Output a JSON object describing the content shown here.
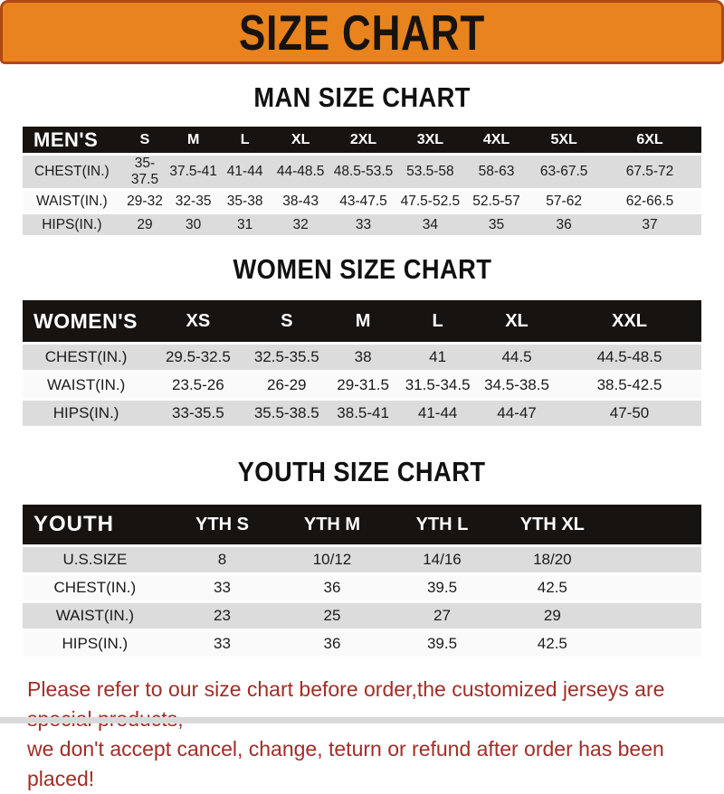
{
  "banner": {
    "title": "SIZE CHART",
    "bg_color": "#e8831e",
    "border_color": "#b04716",
    "text_color": "#171310"
  },
  "sections": [
    {
      "heading": "MAN SIZE CHART",
      "table": {
        "label": "MEN'S",
        "columns": [
          "S",
          "M",
          "L",
          "XL",
          "2XL",
          "3XL",
          "4XL",
          "5XL",
          "6XL"
        ],
        "rows": [
          {
            "label": "CHEST(IN.)",
            "values": [
              "35-37.5",
              "37.5-41",
              "41-44",
              "44-48.5",
              "48.5-53.5",
              "53.5-58",
              "58-63",
              "63-67.5",
              "67.5-72"
            ]
          },
          {
            "label": "WAIST(IN.)",
            "values": [
              "29-32",
              "32-35",
              "35-38",
              "38-43",
              "43-47.5",
              "47.5-52.5",
              "52.5-57",
              "57-62",
              "62-66.5"
            ]
          },
          {
            "label": "HIPS(IN.)",
            "values": [
              "29",
              "30",
              "31",
              "32",
              "33",
              "34",
              "35",
              "36",
              "37"
            ]
          }
        ]
      }
    },
    {
      "heading": "WOMEN SIZE CHART",
      "table": {
        "label": "WOMEN'S",
        "columns": [
          "XS",
          "S",
          "M",
          "L",
          "XL",
          "XXL"
        ],
        "rows": [
          {
            "label": "CHEST(IN.)",
            "values": [
              "29.5-32.5",
              "32.5-35.5",
              "38",
              "41",
              "44.5",
              "44.5-48.5"
            ]
          },
          {
            "label": "WAIST(IN.)",
            "values": [
              "23.5-26",
              "26-29",
              "29-31.5",
              "31.5-34.5",
              "34.5-38.5",
              "38.5-42.5"
            ]
          },
          {
            "label": "HIPS(IN.)",
            "values": [
              "33-35.5",
              "35.5-38.5",
              "38.5-41",
              "41-44",
              "44-47",
              "47-50"
            ]
          }
        ]
      }
    },
    {
      "heading": "YOUTH SIZE CHART",
      "table": {
        "label": "YOUTH",
        "columns": [
          "YTH S",
          "YTH M",
          "YTH L",
          "YTH XL"
        ],
        "rows": [
          {
            "label": "U.S.SIZE",
            "values": [
              "8",
              "10/12",
              "14/16",
              "18/20"
            ]
          },
          {
            "label": "CHEST(IN.)",
            "values": [
              "33",
              "36",
              "39.5",
              "42.5"
            ]
          },
          {
            "label": "WAIST(IN.)",
            "values": [
              "23",
              "25",
              "27",
              "29"
            ]
          },
          {
            "label": "HIPS(IN.)",
            "values": [
              "33",
              "36",
              "39.5",
              "42.5"
            ]
          }
        ]
      }
    }
  ],
  "footer": {
    "line1": "Please refer to our size chart before order,the customized jerseys are special products,",
    "line2": "we don't accept cancel, change, teturn or refund after order has been placed!",
    "text_color": "#a22d27"
  },
  "row_colors": {
    "stripe_gray": "#dcdcdc",
    "stripe_light": "#fafafa",
    "header_black": "#171310"
  }
}
